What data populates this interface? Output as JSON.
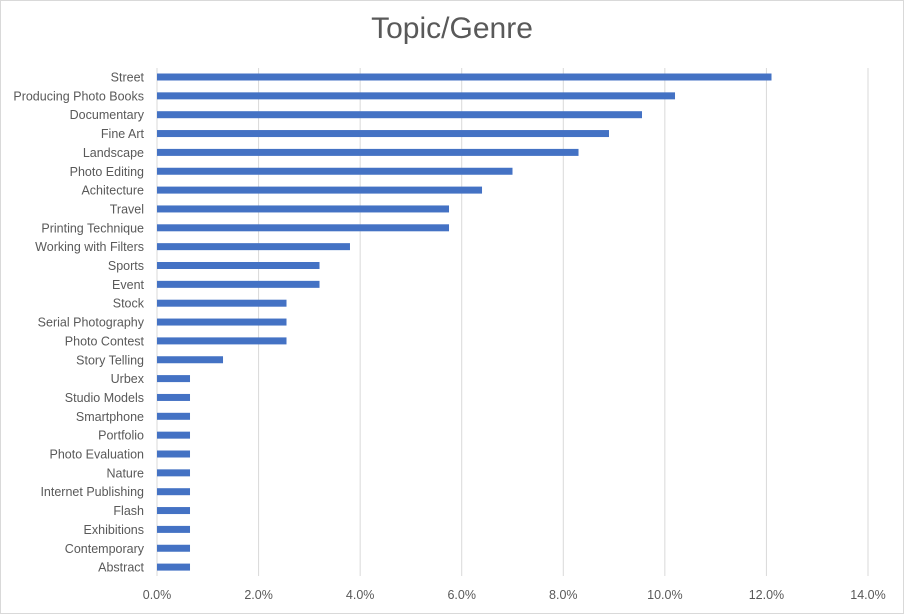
{
  "chart_data": {
    "type": "bar",
    "orientation": "horizontal",
    "title": "Topic/Genre",
    "xlabel": "",
    "ylabel": "",
    "categories": [
      "Street",
      "Producing Photo Books",
      "Documentary",
      "Fine Art",
      "Landscape",
      "Photo Editing",
      "Achitecture",
      "Travel",
      "Printing Technique",
      "Working with Filters",
      "Sports",
      "Event",
      "Stock",
      "Serial Photography",
      "Photo Contest",
      "Story Telling",
      "Urbex",
      "Studio Models",
      "Smartphone",
      "Portfolio",
      "Photo Evaluation",
      "Nature",
      "Internet Publishing",
      "Flash",
      "Exhibitions",
      "Contemporary",
      "Abstract"
    ],
    "values": [
      12.1,
      10.2,
      9.55,
      8.9,
      8.3,
      7.0,
      6.4,
      5.75,
      5.75,
      3.8,
      3.2,
      3.2,
      2.55,
      2.55,
      2.55,
      1.3,
      0.65,
      0.65,
      0.65,
      0.65,
      0.65,
      0.65,
      0.65,
      0.65,
      0.65,
      0.65,
      0.65
    ],
    "xlim": [
      0,
      14
    ],
    "xticks": [
      0,
      2,
      4,
      6,
      8,
      10,
      12,
      14
    ],
    "xtick_labels": [
      "0.0%",
      "2.0%",
      "4.0%",
      "6.0%",
      "8.0%",
      "10.0%",
      "12.0%",
      "14.0%"
    ],
    "grid": "vertical",
    "legend": "none",
    "colors": {
      "bar": "#4472c4",
      "grid": "#d9d9d9",
      "text": "#595959"
    }
  }
}
